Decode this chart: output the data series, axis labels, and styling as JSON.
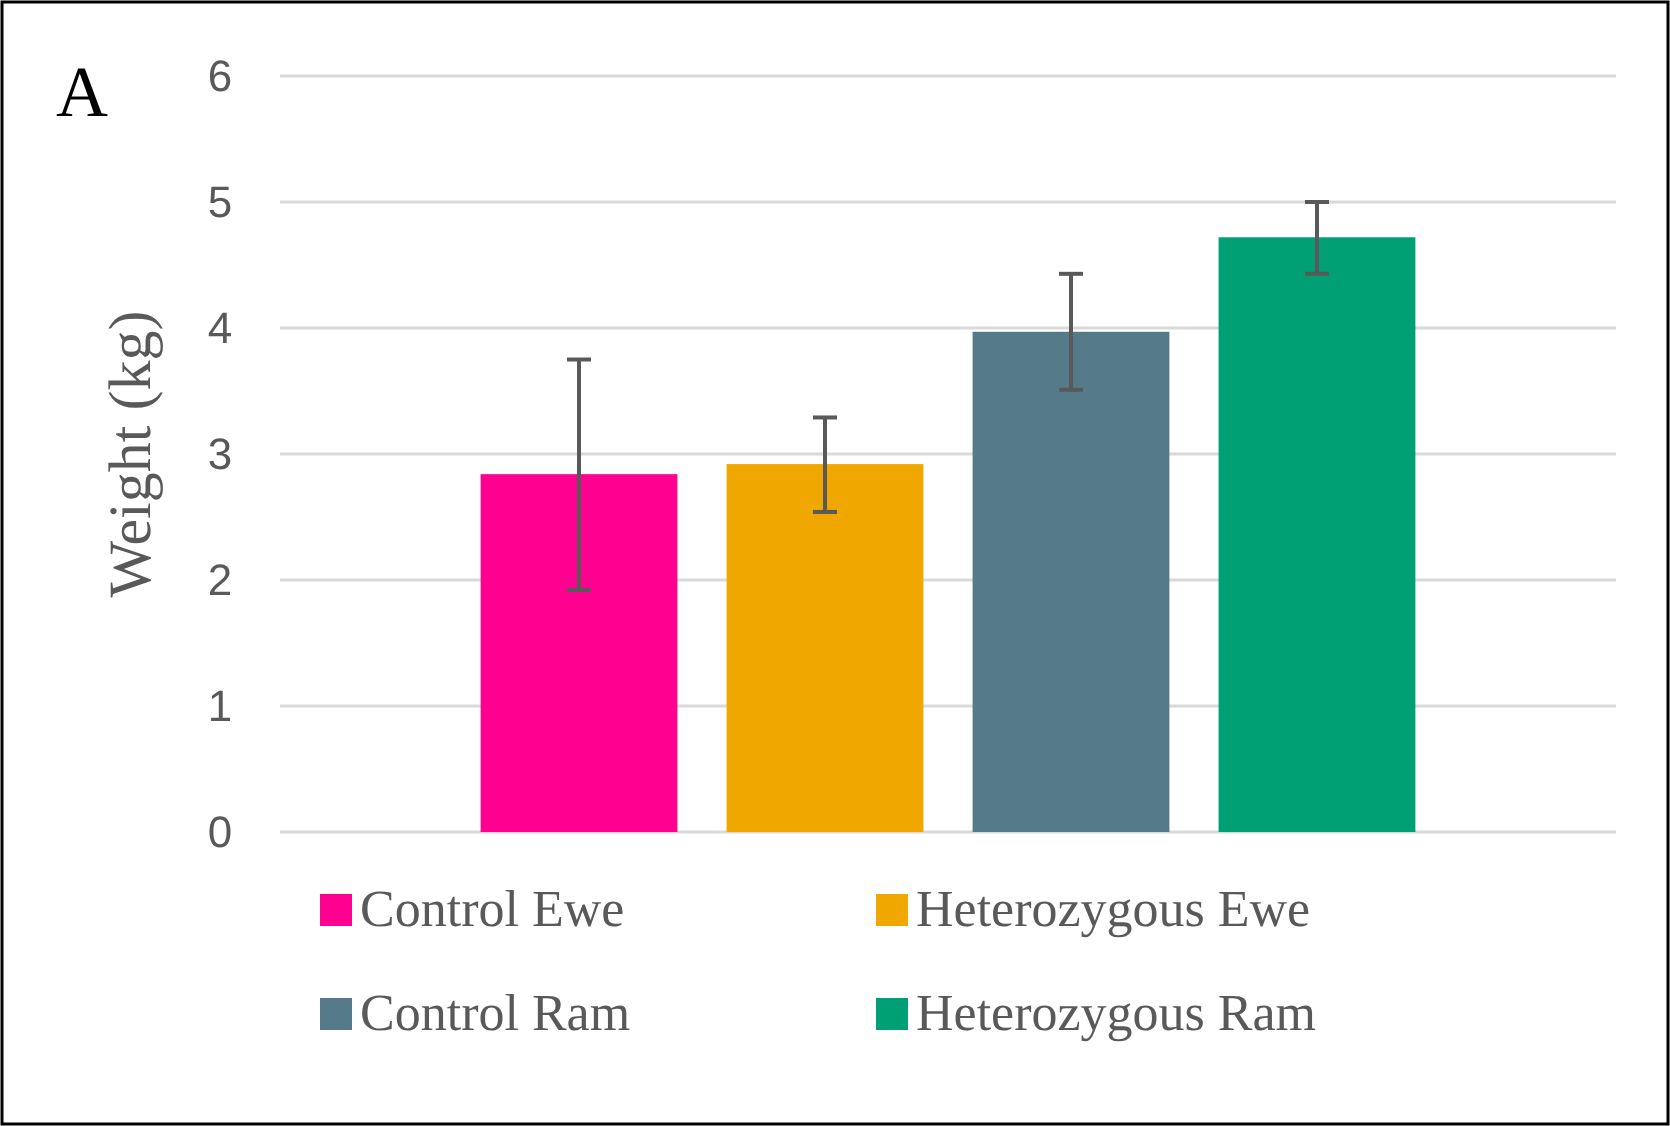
{
  "chart_data": {
    "type": "bar",
    "ylabel": "Weight (kg)",
    "annotations": [
      "A"
    ],
    "categories": [
      null
    ],
    "series": [
      {
        "name": "Control Ewe",
        "color": "#ff0090",
        "values": [
          2.84
        ],
        "errors": [
          [
            1.92,
            3.75
          ]
        ]
      },
      {
        "name": "Heterozygous Ewe",
        "color": "#f0a800",
        "values": [
          2.92
        ],
        "errors": [
          [
            2.54,
            3.29
          ]
        ]
      },
      {
        "name": "Control Ram",
        "color": "#557b8a",
        "values": [
          3.97
        ],
        "errors": [
          [
            3.51,
            4.43
          ]
        ]
      },
      {
        "name": "Heterozygous Ram",
        "color": "#00a074",
        "values": [
          4.72
        ],
        "errors": [
          [
            4.43,
            5.0
          ]
        ]
      }
    ],
    "ylim": [
      0,
      6
    ],
    "yticks": [
      0,
      1,
      2,
      3,
      4,
      5,
      6
    ],
    "grid": "y",
    "legend": "bottom"
  }
}
